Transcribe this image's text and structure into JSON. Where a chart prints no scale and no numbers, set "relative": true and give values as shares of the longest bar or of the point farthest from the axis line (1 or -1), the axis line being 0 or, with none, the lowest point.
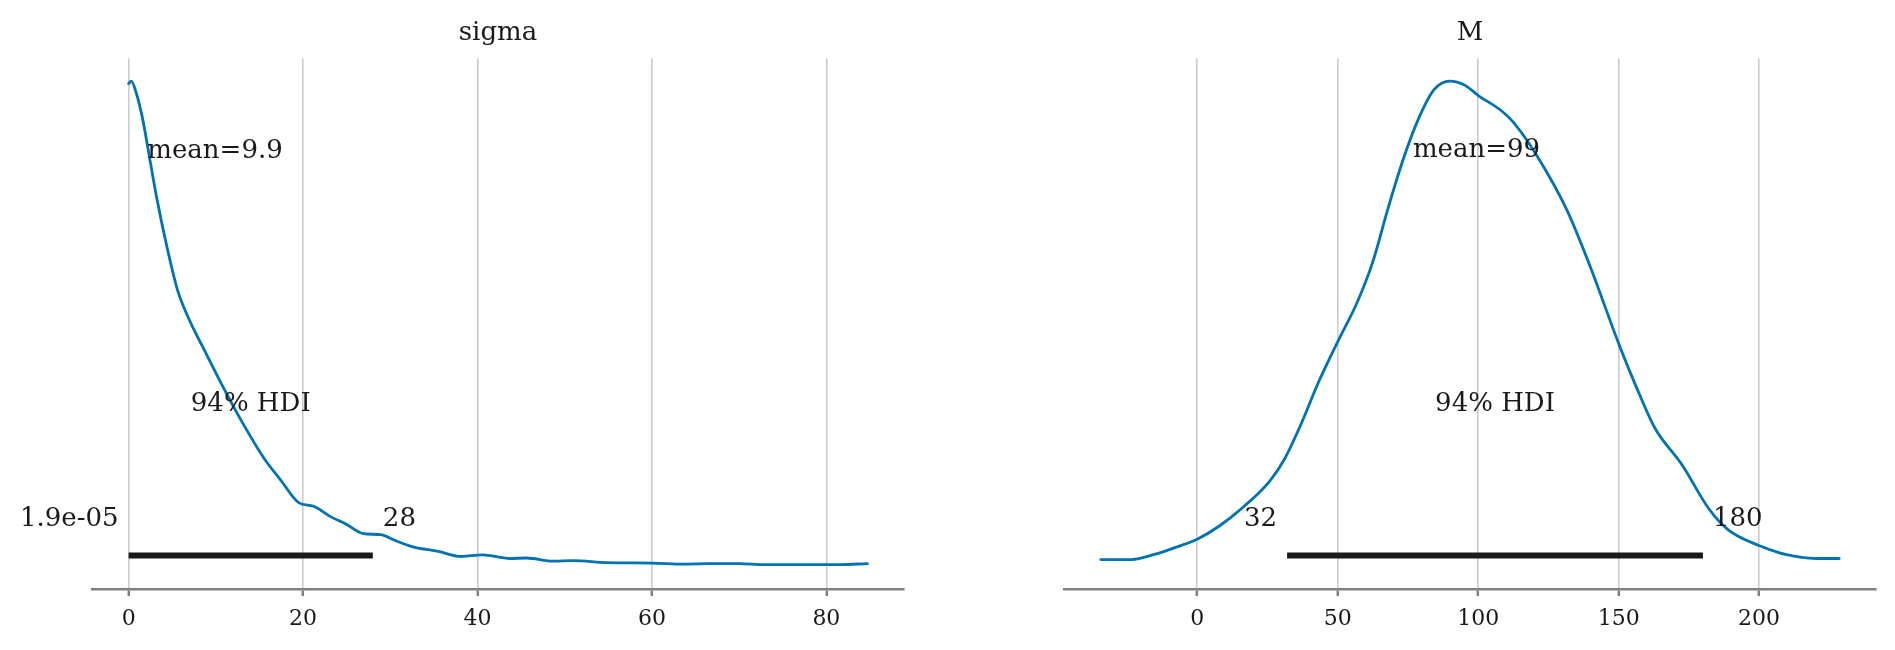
{
  "chart_data": [
    {
      "type": "line",
      "title": "sigma",
      "relative": true,
      "grid": "x",
      "marker": "none",
      "xlim": [
        -4.2,
        88.9
      ],
      "xticks": [
        0,
        20,
        40,
        60,
        80
      ],
      "series": [
        {
          "color": "#0173b2",
          "x": [
            0,
            0.3,
            0.9,
            1.6,
            2.4,
            3.2,
            4.4,
            5.6,
            6.9,
            8.9,
            11,
            13,
            15.5,
            17.5,
            19.5,
            21.2,
            23.2,
            24.9,
            26.9,
            28.9,
            30.5,
            32.6,
            35.5,
            38.1,
            40.6,
            43.7,
            45.6,
            48.7,
            51,
            54.8,
            60.1,
            63.6,
            66.3,
            70.1,
            72.8,
            77.8,
            81.6,
            84.7
          ],
          "values": [
            0.995,
            1.0,
            0.975,
            0.926,
            0.849,
            0.772,
            0.673,
            0.589,
            0.532,
            0.463,
            0.392,
            0.329,
            0.258,
            0.213,
            0.17,
            0.163,
            0.142,
            0.128,
            0.109,
            0.107,
            0.096,
            0.083,
            0.074,
            0.064,
            0.067,
            0.06,
            0.061,
            0.055,
            0.056,
            0.052,
            0.051,
            0.049,
            0.05,
            0.05,
            0.048,
            0.048,
            0.048,
            0.05
          ]
        },
        {
          "color": "#1a1a1a",
          "x": [
            1.9e-05,
            28
          ],
          "values": [
            0.066,
            0.066
          ]
        }
      ],
      "annotations": [
        "mean=9.9",
        "94% HDI",
        {
          "text": "1.9e-05",
          "x": 1.9e-05,
          "y": 0.066
        },
        {
          "text": "28",
          "x": 28,
          "y": 0.066
        }
      ]
    },
    {
      "type": "line",
      "title": "M",
      "relative": true,
      "grid": "x",
      "marker": "none",
      "xlim": [
        -47.4,
        241.6
      ],
      "xticks": [
        0,
        50,
        100,
        150,
        200
      ],
      "series": [
        {
          "color": "#0173b2",
          "x": [
            -34.3,
            -23.4,
            -15.2,
            -7.1,
            0,
            7.9,
            16.1,
            25.6,
            31.1,
            36.6,
            43.4,
            50.3,
            57,
            62.5,
            67.9,
            73.4,
            78.8,
            84.3,
            90,
            95.2,
            100.2,
            108.4,
            112.5,
            120.7,
            131.6,
            139.8,
            150.1,
            156.2,
            163,
            172.5,
            182.1,
            188.9,
            200.2,
            209.4,
            220.3,
            228.5
          ],
          "values": [
            0.058,
            0.058,
            0.068,
            0.083,
            0.098,
            0.124,
            0.16,
            0.211,
            0.256,
            0.32,
            0.41,
            0.49,
            0.565,
            0.644,
            0.749,
            0.847,
            0.926,
            0.983,
            1.0,
            0.992,
            0.971,
            0.941,
            0.919,
            0.855,
            0.746,
            0.636,
            0.482,
            0.399,
            0.316,
            0.245,
            0.158,
            0.117,
            0.085,
            0.068,
            0.06,
            0.06
          ]
        },
        {
          "color": "#1a1a1a",
          "x": [
            32,
            180
          ],
          "values": [
            0.066,
            0.066
          ]
        }
      ],
      "annotations": [
        "mean=99",
        "94% HDI",
        {
          "text": "32",
          "x": 32,
          "y": 0.066
        },
        {
          "text": "180",
          "x": 180,
          "y": 0.066
        }
      ]
    }
  ]
}
